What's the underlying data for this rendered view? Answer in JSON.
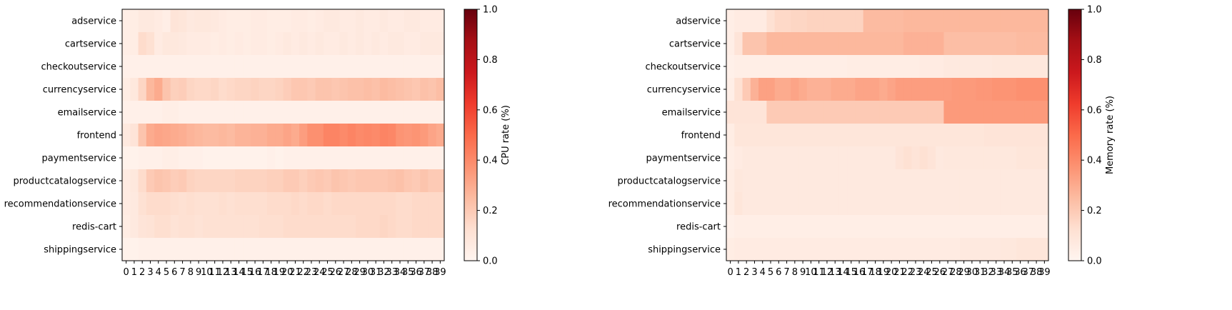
{
  "chart_data": [
    {
      "type": "heatmap",
      "colormap": "Reds",
      "colorbar_label": "CPU rate (%)",
      "colorbar_ticks": [
        "0.0",
        "0.2",
        "0.4",
        "0.6",
        "0.8",
        "1.0"
      ],
      "vmin": 0.0,
      "vmax": 1.0,
      "rows": [
        "adservice",
        "cartservice",
        "checkoutservice",
        "currencyservice",
        "emailservice",
        "frontend",
        "paymentservice",
        "productcatalogservice",
        "recommendationservice",
        "redis-cart",
        "shippingservice"
      ],
      "x": [
        "0",
        "1",
        "2",
        "3",
        "4",
        "5",
        "6",
        "7",
        "8",
        "9",
        "10",
        "11",
        "12",
        "13",
        "14",
        "15",
        "16",
        "17",
        "18",
        "19",
        "20",
        "21",
        "22",
        "23",
        "24",
        "25",
        "26",
        "27",
        "28",
        "29",
        "30",
        "31",
        "32",
        "33",
        "34",
        "35",
        "36",
        "37",
        "38",
        "39"
      ],
      "values": [
        [
          0.04,
          0.05,
          0.07,
          0.07,
          0.06,
          0.04,
          0.1,
          0.09,
          0.07,
          0.08,
          0.08,
          0.07,
          0.06,
          0.05,
          0.05,
          0.05,
          0.06,
          0.06,
          0.05,
          0.05,
          0.05,
          0.06,
          0.06,
          0.05,
          0.06,
          0.07,
          0.07,
          0.06,
          0.06,
          0.07,
          0.06,
          0.06,
          0.07,
          0.06,
          0.06,
          0.07,
          0.07,
          0.06,
          0.06,
          0.06
        ],
        [
          0.04,
          0.05,
          0.14,
          0.12,
          0.06,
          0.08,
          0.08,
          0.07,
          0.06,
          0.06,
          0.06,
          0.05,
          0.06,
          0.05,
          0.06,
          0.05,
          0.06,
          0.06,
          0.05,
          0.06,
          0.07,
          0.06,
          0.07,
          0.06,
          0.07,
          0.06,
          0.06,
          0.07,
          0.06,
          0.07,
          0.06,
          0.07,
          0.06,
          0.07,
          0.07,
          0.06,
          0.06,
          0.07,
          0.07,
          0.07
        ],
        [
          0.03,
          0.03,
          0.03,
          0.03,
          0.03,
          0.03,
          0.03,
          0.03,
          0.03,
          0.03,
          0.03,
          0.03,
          0.03,
          0.03,
          0.03,
          0.03,
          0.03,
          0.03,
          0.03,
          0.03,
          0.03,
          0.03,
          0.03,
          0.03,
          0.03,
          0.03,
          0.03,
          0.03,
          0.03,
          0.03,
          0.03,
          0.03,
          0.03,
          0.03,
          0.03,
          0.03,
          0.03,
          0.03,
          0.03,
          0.03
        ],
        [
          0.05,
          0.08,
          0.16,
          0.26,
          0.3,
          0.22,
          0.18,
          0.19,
          0.16,
          0.15,
          0.15,
          0.16,
          0.14,
          0.15,
          0.16,
          0.16,
          0.17,
          0.16,
          0.16,
          0.17,
          0.19,
          0.21,
          0.21,
          0.2,
          0.22,
          0.22,
          0.21,
          0.22,
          0.23,
          0.23,
          0.24,
          0.23,
          0.25,
          0.24,
          0.23,
          0.22,
          0.21,
          0.23,
          0.22,
          0.24
        ],
        [
          0.03,
          0.03,
          0.03,
          0.03,
          0.03,
          0.04,
          0.04,
          0.03,
          0.03,
          0.03,
          0.03,
          0.03,
          0.03,
          0.03,
          0.03,
          0.03,
          0.03,
          0.03,
          0.03,
          0.03,
          0.03,
          0.03,
          0.03,
          0.03,
          0.03,
          0.03,
          0.03,
          0.03,
          0.03,
          0.03,
          0.03,
          0.03,
          0.03,
          0.03,
          0.03,
          0.03,
          0.03,
          0.03,
          0.03,
          0.03
        ],
        [
          0.07,
          0.1,
          0.22,
          0.3,
          0.32,
          0.31,
          0.3,
          0.29,
          0.27,
          0.26,
          0.25,
          0.25,
          0.26,
          0.25,
          0.27,
          0.27,
          0.28,
          0.28,
          0.3,
          0.3,
          0.32,
          0.3,
          0.34,
          0.38,
          0.38,
          0.42,
          0.42,
          0.4,
          0.42,
          0.4,
          0.41,
          0.4,
          0.42,
          0.41,
          0.37,
          0.36,
          0.37,
          0.35,
          0.32,
          0.3
        ],
        [
          0.02,
          0.02,
          0.03,
          0.03,
          0.03,
          0.04,
          0.04,
          0.03,
          0.03,
          0.03,
          0.02,
          0.02,
          0.02,
          0.02,
          0.02,
          0.02,
          0.02,
          0.02,
          0.03,
          0.02,
          0.03,
          0.03,
          0.03,
          0.03,
          0.03,
          0.03,
          0.03,
          0.03,
          0.03,
          0.03,
          0.03,
          0.03,
          0.03,
          0.03,
          0.03,
          0.03,
          0.03,
          0.03,
          0.03,
          0.03
        ],
        [
          0.06,
          0.08,
          0.14,
          0.2,
          0.22,
          0.21,
          0.19,
          0.2,
          0.17,
          0.16,
          0.16,
          0.16,
          0.16,
          0.16,
          0.17,
          0.17,
          0.17,
          0.17,
          0.18,
          0.18,
          0.2,
          0.2,
          0.18,
          0.2,
          0.21,
          0.2,
          0.22,
          0.21,
          0.2,
          0.21,
          0.21,
          0.21,
          0.21,
          0.22,
          0.23,
          0.21,
          0.2,
          0.22,
          0.2,
          0.2
        ],
        [
          0.06,
          0.07,
          0.12,
          0.14,
          0.14,
          0.14,
          0.13,
          0.12,
          0.13,
          0.12,
          0.12,
          0.12,
          0.13,
          0.12,
          0.13,
          0.13,
          0.13,
          0.13,
          0.14,
          0.14,
          0.14,
          0.15,
          0.14,
          0.15,
          0.15,
          0.14,
          0.15,
          0.15,
          0.15,
          0.15,
          0.15,
          0.15,
          0.15,
          0.15,
          0.14,
          0.14,
          0.15,
          0.15,
          0.15,
          0.15
        ],
        [
          0.05,
          0.07,
          0.1,
          0.11,
          0.13,
          0.13,
          0.11,
          0.12,
          0.12,
          0.11,
          0.12,
          0.12,
          0.12,
          0.12,
          0.12,
          0.12,
          0.12,
          0.13,
          0.13,
          0.13,
          0.14,
          0.14,
          0.14,
          0.14,
          0.14,
          0.14,
          0.14,
          0.14,
          0.14,
          0.15,
          0.15,
          0.15,
          0.16,
          0.15,
          0.14,
          0.14,
          0.15,
          0.15,
          0.15,
          0.15
        ],
        [
          0.02,
          0.02,
          0.03,
          0.03,
          0.03,
          0.03,
          0.03,
          0.03,
          0.03,
          0.03,
          0.03,
          0.03,
          0.03,
          0.03,
          0.03,
          0.03,
          0.03,
          0.03,
          0.03,
          0.03,
          0.03,
          0.03,
          0.03,
          0.03,
          0.03,
          0.03,
          0.03,
          0.03,
          0.03,
          0.03,
          0.03,
          0.03,
          0.03,
          0.03,
          0.03,
          0.03,
          0.03,
          0.03,
          0.03,
          0.03
        ]
      ]
    },
    {
      "type": "heatmap",
      "colormap": "Reds",
      "colorbar_label": "Memory rate (%)",
      "colorbar_ticks": [
        "0.0",
        "0.2",
        "0.4",
        "0.6",
        "0.8",
        "1.0"
      ],
      "vmin": 0.0,
      "vmax": 1.0,
      "rows": [
        "adservice",
        "cartservice",
        "checkoutservice",
        "currencyservice",
        "emailservice",
        "frontend",
        "paymentservice",
        "productcatalogservice",
        "recommendationservice",
        "redis-cart",
        "shippingservice"
      ],
      "x": [
        "0",
        "1",
        "2",
        "3",
        "4",
        "5",
        "6",
        "7",
        "8",
        "9",
        "10",
        "11",
        "12",
        "13",
        "14",
        "15",
        "16",
        "17",
        "18",
        "19",
        "20",
        "21",
        "22",
        "23",
        "24",
        "25",
        "26",
        "27",
        "28",
        "29",
        "30",
        "31",
        "32",
        "33",
        "34",
        "35",
        "36",
        "37",
        "38",
        "39"
      ],
      "values": [
        [
          0.04,
          0.06,
          0.06,
          0.06,
          0.06,
          0.12,
          0.15,
          0.15,
          0.16,
          0.16,
          0.17,
          0.17,
          0.17,
          0.17,
          0.17,
          0.17,
          0.17,
          0.25,
          0.25,
          0.25,
          0.25,
          0.25,
          0.26,
          0.26,
          0.26,
          0.26,
          0.26,
          0.26,
          0.26,
          0.26,
          0.26,
          0.26,
          0.26,
          0.26,
          0.26,
          0.26,
          0.26,
          0.26,
          0.26,
          0.26
        ],
        [
          0.04,
          0.1,
          0.22,
          0.22,
          0.22,
          0.26,
          0.26,
          0.26,
          0.26,
          0.26,
          0.26,
          0.26,
          0.26,
          0.26,
          0.26,
          0.26,
          0.26,
          0.26,
          0.26,
          0.26,
          0.26,
          0.26,
          0.28,
          0.28,
          0.28,
          0.28,
          0.28,
          0.24,
          0.24,
          0.24,
          0.24,
          0.24,
          0.24,
          0.24,
          0.24,
          0.24,
          0.25,
          0.25,
          0.25,
          0.25
        ],
        [
          0.03,
          0.04,
          0.04,
          0.04,
          0.04,
          0.04,
          0.04,
          0.04,
          0.04,
          0.04,
          0.04,
          0.04,
          0.04,
          0.04,
          0.04,
          0.05,
          0.05,
          0.05,
          0.05,
          0.05,
          0.05,
          0.05,
          0.05,
          0.05,
          0.06,
          0.06,
          0.06,
          0.07,
          0.07,
          0.07,
          0.07,
          0.07,
          0.07,
          0.08,
          0.08,
          0.08,
          0.08,
          0.08,
          0.08,
          0.08
        ],
        [
          0.04,
          0.12,
          0.2,
          0.28,
          0.33,
          0.33,
          0.3,
          0.3,
          0.32,
          0.3,
          0.28,
          0.28,
          0.28,
          0.3,
          0.3,
          0.3,
          0.32,
          0.32,
          0.32,
          0.3,
          0.32,
          0.34,
          0.34,
          0.34,
          0.34,
          0.34,
          0.34,
          0.34,
          0.35,
          0.35,
          0.35,
          0.36,
          0.36,
          0.37,
          0.37,
          0.37,
          0.38,
          0.38,
          0.38,
          0.38
        ],
        [
          0.1,
          0.1,
          0.1,
          0.1,
          0.1,
          0.2,
          0.2,
          0.2,
          0.2,
          0.2,
          0.2,
          0.2,
          0.2,
          0.2,
          0.2,
          0.2,
          0.2,
          0.2,
          0.2,
          0.2,
          0.2,
          0.2,
          0.2,
          0.2,
          0.2,
          0.2,
          0.2,
          0.35,
          0.35,
          0.35,
          0.35,
          0.35,
          0.35,
          0.35,
          0.35,
          0.35,
          0.35,
          0.35,
          0.35,
          0.35
        ],
        [
          0.05,
          0.09,
          0.09,
          0.09,
          0.09,
          0.09,
          0.09,
          0.09,
          0.09,
          0.09,
          0.09,
          0.09,
          0.09,
          0.09,
          0.09,
          0.09,
          0.09,
          0.09,
          0.09,
          0.09,
          0.09,
          0.09,
          0.09,
          0.09,
          0.09,
          0.09,
          0.09,
          0.09,
          0.09,
          0.09,
          0.09,
          0.09,
          0.1,
          0.1,
          0.1,
          0.1,
          0.1,
          0.1,
          0.1,
          0.1
        ],
        [
          0.04,
          0.06,
          0.07,
          0.07,
          0.07,
          0.07,
          0.07,
          0.07,
          0.07,
          0.07,
          0.07,
          0.07,
          0.07,
          0.07,
          0.07,
          0.07,
          0.07,
          0.07,
          0.07,
          0.07,
          0.07,
          0.1,
          0.12,
          0.1,
          0.12,
          0.1,
          0.07,
          0.08,
          0.08,
          0.08,
          0.08,
          0.08,
          0.08,
          0.08,
          0.08,
          0.08,
          0.09,
          0.09,
          0.09,
          0.09
        ],
        [
          0.05,
          0.08,
          0.07,
          0.07,
          0.07,
          0.07,
          0.07,
          0.07,
          0.07,
          0.07,
          0.07,
          0.07,
          0.07,
          0.07,
          0.07,
          0.07,
          0.07,
          0.07,
          0.07,
          0.07,
          0.07,
          0.07,
          0.07,
          0.07,
          0.07,
          0.07,
          0.07,
          0.07,
          0.07,
          0.07,
          0.07,
          0.07,
          0.07,
          0.07,
          0.07,
          0.07,
          0.07,
          0.07,
          0.07,
          0.07
        ],
        [
          0.05,
          0.09,
          0.07,
          0.07,
          0.07,
          0.07,
          0.07,
          0.07,
          0.07,
          0.07,
          0.07,
          0.07,
          0.07,
          0.07,
          0.07,
          0.07,
          0.07,
          0.07,
          0.07,
          0.07,
          0.07,
          0.07,
          0.07,
          0.07,
          0.07,
          0.07,
          0.07,
          0.07,
          0.07,
          0.07,
          0.07,
          0.07,
          0.07,
          0.07,
          0.07,
          0.07,
          0.07,
          0.07,
          0.07,
          0.07
        ],
        [
          0.03,
          0.04,
          0.04,
          0.04,
          0.04,
          0.04,
          0.04,
          0.04,
          0.04,
          0.04,
          0.04,
          0.04,
          0.04,
          0.04,
          0.04,
          0.04,
          0.04,
          0.04,
          0.04,
          0.04,
          0.04,
          0.04,
          0.04,
          0.04,
          0.04,
          0.04,
          0.04,
          0.04,
          0.04,
          0.04,
          0.04,
          0.04,
          0.04,
          0.04,
          0.04,
          0.04,
          0.04,
          0.04,
          0.04,
          0.04
        ],
        [
          0.05,
          0.06,
          0.06,
          0.06,
          0.06,
          0.06,
          0.06,
          0.06,
          0.06,
          0.06,
          0.06,
          0.06,
          0.06,
          0.06,
          0.06,
          0.06,
          0.06,
          0.06,
          0.06,
          0.06,
          0.06,
          0.06,
          0.06,
          0.06,
          0.06,
          0.06,
          0.06,
          0.06,
          0.06,
          0.07,
          0.07,
          0.07,
          0.07,
          0.07,
          0.08,
          0.08,
          0.09,
          0.09,
          0.09,
          0.09
        ]
      ]
    }
  ]
}
